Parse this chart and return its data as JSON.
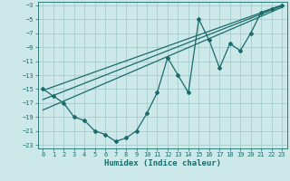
{
  "xlabel": "Humidex (Indice chaleur)",
  "bg_color": "#cce8e8",
  "grid_color": "#a0c8c8",
  "line_color": "#1a6b6b",
  "xlim": [
    -0.5,
    23.5
  ],
  "ylim": [
    -23.5,
    -2.5
  ],
  "yticks": [
    -23,
    -21,
    -19,
    -17,
    -15,
    -13,
    -11,
    -9,
    -7,
    -5,
    -3
  ],
  "xticks": [
    0,
    1,
    2,
    3,
    4,
    5,
    6,
    7,
    8,
    9,
    10,
    11,
    12,
    13,
    14,
    15,
    16,
    17,
    18,
    19,
    20,
    21,
    22,
    23
  ],
  "data_x": [
    0,
    1,
    2,
    3,
    4,
    5,
    6,
    7,
    8,
    9,
    10,
    11,
    12,
    13,
    14,
    15,
    16,
    17,
    18,
    19,
    20,
    21,
    22,
    23
  ],
  "data_y": [
    -15,
    -16,
    -17,
    -19,
    -19.5,
    -21,
    -21.5,
    -22.5,
    -22,
    -21,
    -18.5,
    -15.5,
    -10.5,
    -13,
    -15.5,
    -5,
    -8,
    -12,
    -8.5,
    -9.5,
    -7,
    -4,
    -3.5,
    -3
  ],
  "trend1_x": [
    0,
    23
  ],
  "trend1_y": [
    -18.0,
    -3.3
  ],
  "trend2_x": [
    0,
    23
  ],
  "trend2_y": [
    -15.2,
    -3.0
  ],
  "trend3_x": [
    0,
    23
  ],
  "trend3_y": [
    -16.5,
    -3.1
  ]
}
